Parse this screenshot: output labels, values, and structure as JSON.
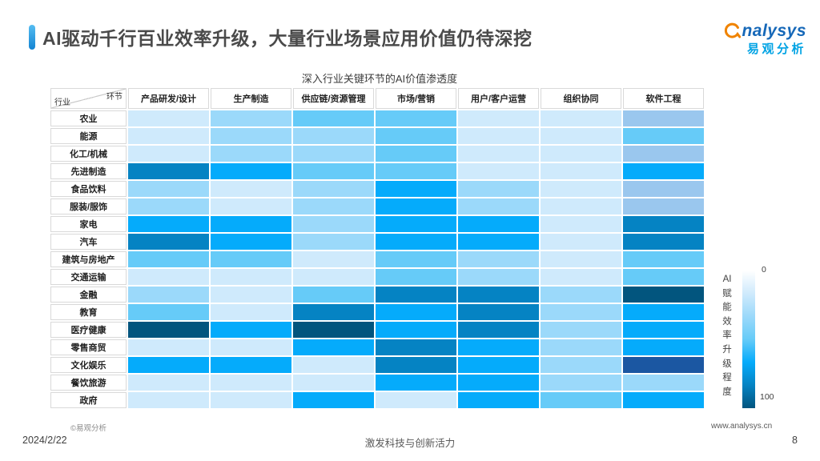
{
  "page": {
    "title": "AI驱动千行百业效率升级，大量行业场景应用价值仍待深挖",
    "logo": {
      "brand": "Analysys",
      "brand_cn": "易观分析",
      "swoosh_color": "#f08300"
    },
    "footer": {
      "copyright": "©易观分析",
      "website": "www.analysys.cn",
      "date": "2024/2/22",
      "slogan": "激发科技与创新活力",
      "page_number": "8"
    },
    "accent_color": "#1f8fdc"
  },
  "chart_data": {
    "type": "heatmap",
    "title": "深入行业关键环节的AI价值渗透度",
    "corner": {
      "top_right": "环节",
      "bottom_left": "行业"
    },
    "columns": [
      "产品研发/设计",
      "生产制造",
      "供应链/资源管理",
      "市场/营销",
      "用户/客户运营",
      "组织协同",
      "软件工程"
    ],
    "rows": [
      "农业",
      "能源",
      "化工/机械",
      "先进制造",
      "食品饮料",
      "服装/服饰",
      "家电",
      "汽车",
      "建筑与房地产",
      "交通运输",
      "金融",
      "教育",
      "医疗健康",
      "零售商贸",
      "文化娱乐",
      "餐饮旅游",
      "政府"
    ],
    "levels": [
      [
        "VL",
        "L",
        "M",
        "M",
        "VL",
        "VL",
        "P"
      ],
      [
        "VL",
        "L",
        "L",
        "M",
        "VL",
        "VL",
        "M"
      ],
      [
        "VL",
        "L",
        "L",
        "M",
        "VL",
        "VL",
        "P"
      ],
      [
        "D",
        "B",
        "M",
        "M",
        "VL",
        "VL",
        "B"
      ],
      [
        "L",
        "VL",
        "L",
        "B",
        "L",
        "VL",
        "P"
      ],
      [
        "L",
        "VL",
        "L",
        "B",
        "L",
        "VL",
        "P"
      ],
      [
        "B",
        "B",
        "L",
        "B",
        "B",
        "VL",
        "D"
      ],
      [
        "D",
        "B",
        "L",
        "B",
        "B",
        "VL",
        "D"
      ],
      [
        "M",
        "M",
        "VL",
        "M",
        "L",
        "VL",
        "M"
      ],
      [
        "VL",
        "VL",
        "VL",
        "M",
        "L",
        "VL",
        "M"
      ],
      [
        "L",
        "VL",
        "M",
        "D",
        "D",
        "L",
        "DD"
      ],
      [
        "M",
        "VL",
        "D",
        "B",
        "D",
        "L",
        "B"
      ],
      [
        "DD",
        "B",
        "DD",
        "B",
        "D",
        "L",
        "B"
      ],
      [
        "VL",
        "VL",
        "B",
        "D",
        "B",
        "L",
        "B"
      ],
      [
        "B",
        "B",
        "VL",
        "D",
        "B",
        "L",
        "I"
      ],
      [
        "VL",
        "VL",
        "VL",
        "B",
        "B",
        "L",
        "L"
      ],
      [
        "VL",
        "VL",
        "B",
        "VL",
        "B",
        "M",
        "B"
      ]
    ],
    "palette": {
      "VL": "#cfeafc",
      "L": "#9bd9fa",
      "M": "#66cbf8",
      "B": "#05abfb",
      "D": "#0583c3",
      "DD": "#02557e",
      "P": "#9ac7ee",
      "I": "#1b57a2"
    },
    "level_values": {
      "VL": 15,
      "L": 30,
      "P": 30,
      "M": 45,
      "B": 65,
      "D": 80,
      "I": 90,
      "DD": 95
    },
    "value_range": [
      0,
      100
    ],
    "legend": {
      "min_label": "0",
      "max_label": "100",
      "title_lines": [
        "AI",
        "赋",
        "能",
        "效",
        "率",
        "升",
        "级",
        "程",
        "度"
      ],
      "gradient": [
        "#ffffff",
        "#cfeafc",
        "#9bd9fa",
        "#66cbf8",
        "#05abfb",
        "#0583c3",
        "#02557e"
      ]
    }
  }
}
